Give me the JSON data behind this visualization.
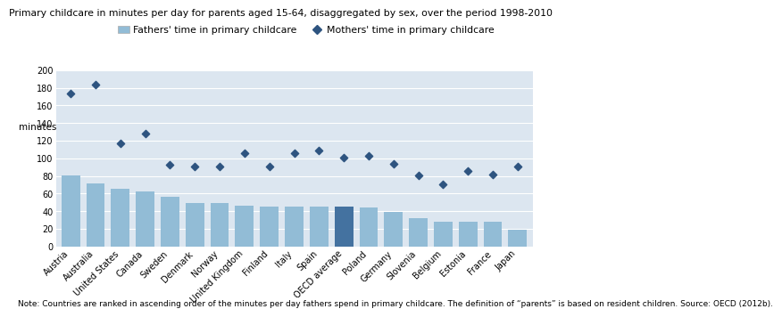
{
  "title": "Primary childcare in minutes per day for parents aged 15-64, disaggregated by sex, over the period 1998-2010",
  "ylabel": "minutes",
  "note": "Note: Countries are ranked in ascending order of the minutes per day fathers spend in primary childcare. The definition of “parents” is based on resident children. Source: OECD (2012b).",
  "categories": [
    "Austria",
    "Australia",
    "United States",
    "Canada",
    "Sweden",
    "Denmark",
    "Norway",
    "United Kingdom",
    "Finland",
    "Italy",
    "Spain",
    "OECD average",
    "Poland",
    "Germany",
    "Slovenia",
    "Belgium",
    "Estonia",
    "France",
    "Japan"
  ],
  "fathers": [
    81,
    72,
    66,
    63,
    56,
    49,
    49,
    46,
    45,
    45,
    45,
    45,
    44,
    39,
    32,
    28,
    28,
    28,
    19
  ],
  "mothers": [
    174,
    184,
    117,
    128,
    93,
    91,
    91,
    106,
    91,
    106,
    109,
    101,
    103,
    94,
    81,
    71,
    86,
    82,
    91
  ],
  "bar_color_normal": "#92bcd6",
  "bar_color_average": "#4472a0",
  "diamond_color": "#2e5480",
  "background_color": "#dce6f0",
  "ylim": [
    0,
    200
  ],
  "yticks": [
    0,
    20,
    40,
    60,
    80,
    100,
    120,
    140,
    160,
    180,
    200
  ],
  "legend_fathers": "Fathers' time in primary childcare",
  "legend_mothers": "Mothers' time in primary childcare",
  "title_fontsize": 7.8,
  "legend_fontsize": 7.8,
  "axis_fontsize": 7.5,
  "tick_fontsize": 7.0,
  "note_fontsize": 6.5
}
